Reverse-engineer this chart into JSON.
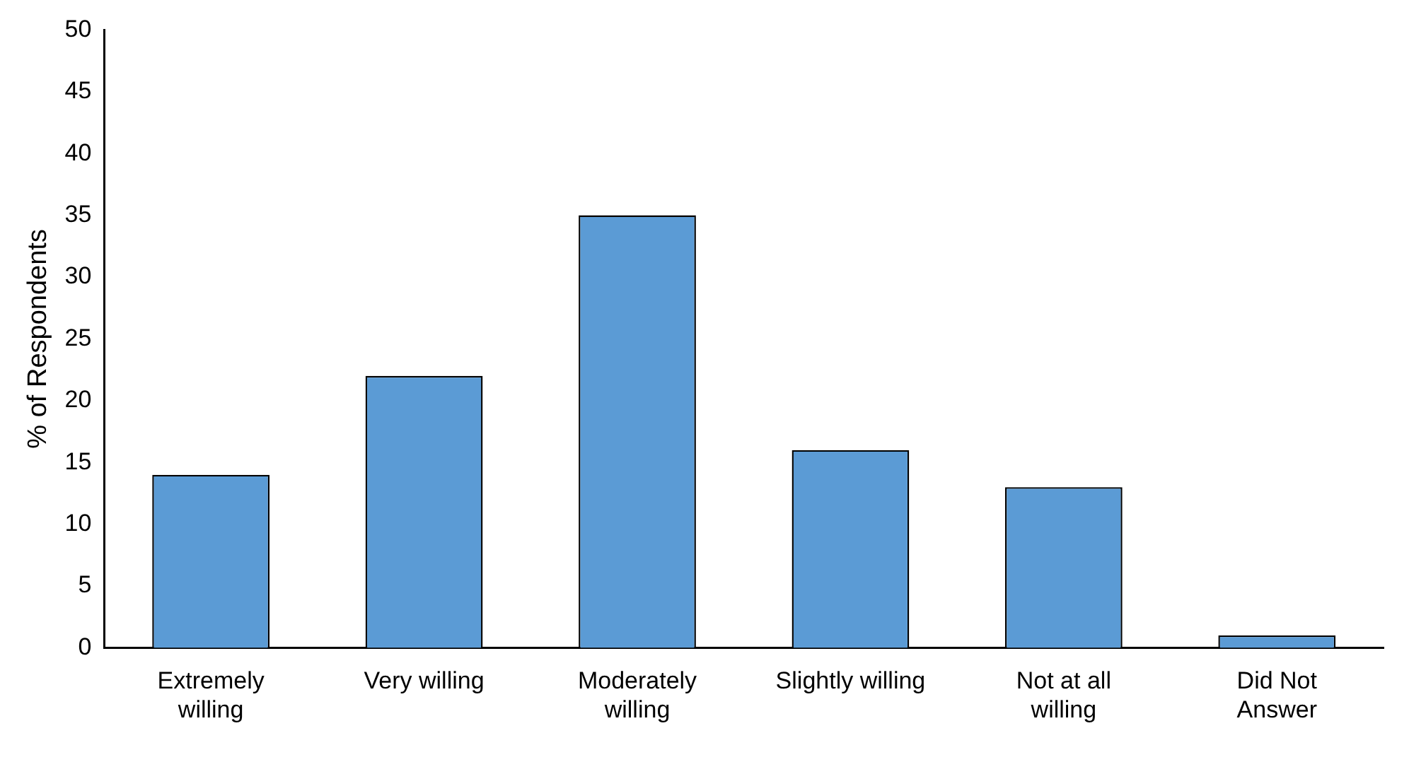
{
  "chart_data": {
    "type": "bar",
    "ylabel": "% of Respondents",
    "categories": [
      "Extremely\nwilling",
      "Very willing",
      "Moderately\nwilling",
      "Slightly willing",
      "Not at all\nwilling",
      "Did Not\nAnswer"
    ],
    "values": [
      14,
      22,
      35,
      16,
      13,
      1
    ],
    "color": "#5b9bd5",
    "ylim": [
      0,
      50
    ],
    "yticks": [
      0,
      5,
      10,
      15,
      20,
      25,
      30,
      35,
      40,
      45,
      50
    ],
    "grid": false,
    "legend": false
  }
}
